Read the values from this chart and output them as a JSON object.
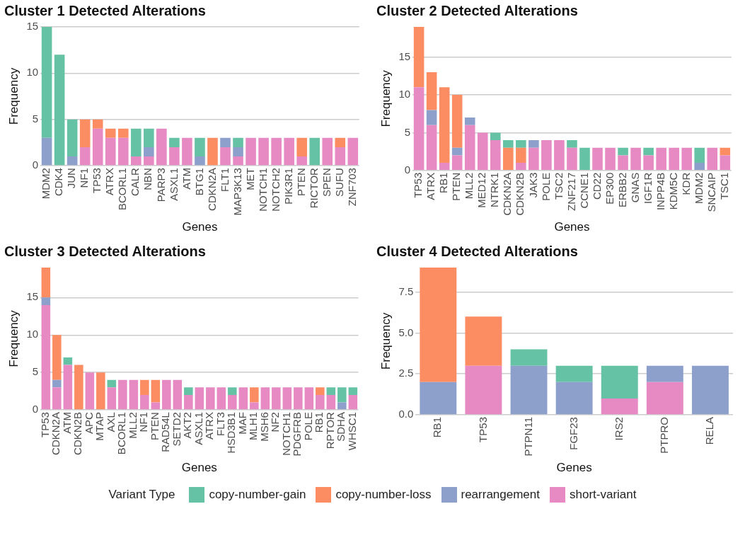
{
  "chart_data": [
    {
      "type": "bar",
      "title": "Cluster 1 Detected Alterations",
      "xlabel": "Genes",
      "ylabel": "Frequency",
      "stacked": true,
      "grid": "y",
      "legend": "bottom",
      "legend_title": "Variant Type",
      "categories": [
        "MDM2",
        "CDK4",
        "JUN",
        "NF1",
        "TP53",
        "ATRX",
        "BCORL1",
        "CALR",
        "NBN",
        "PARP3",
        "ASXL1",
        "ATM",
        "BTG1",
        "CDKN2A",
        "FLT1",
        "MAP3K13",
        "MET",
        "NOTCH1",
        "NOTCH2",
        "PIK3R1",
        "PTEN",
        "RICTOR",
        "SPEN",
        "SUFU",
        "ZNF703"
      ],
      "ylim": [
        0,
        15
      ],
      "yticks": [
        0,
        5,
        10,
        15
      ],
      "series": [
        {
          "name": "short-variant",
          "color": "#e78ac3",
          "values": [
            0,
            0,
            0,
            2,
            4,
            3,
            3,
            1,
            1,
            4,
            2,
            3,
            0,
            0,
            2,
            1,
            3,
            3,
            3,
            3,
            1,
            0,
            3,
            2,
            3
          ]
        },
        {
          "name": "rearrangement",
          "color": "#8da0cb",
          "values": [
            3,
            0,
            1,
            0,
            0,
            0,
            0,
            0,
            1,
            0,
            0,
            0,
            1,
            0,
            1,
            1,
            0,
            0,
            0,
            0,
            0,
            0,
            0,
            0,
            0
          ]
        },
        {
          "name": "copy-number-loss",
          "color": "#fc8d62",
          "values": [
            0,
            0,
            0,
            3,
            1,
            1,
            1,
            0,
            0,
            0,
            0,
            0,
            0,
            3,
            0,
            0,
            0,
            0,
            0,
            0,
            2,
            0,
            0,
            1,
            0
          ]
        },
        {
          "name": "copy-number-gain",
          "color": "#66c2a5",
          "values": [
            12,
            12,
            4,
            0,
            0,
            0,
            0,
            3,
            2,
            0,
            1,
            0,
            2,
            0,
            0,
            1,
            0,
            0,
            0,
            0,
            0,
            3,
            0,
            0,
            0
          ]
        }
      ]
    },
    {
      "type": "bar",
      "title": "Cluster 2 Detected Alterations",
      "xlabel": "Genes",
      "ylabel": "Frequency",
      "stacked": true,
      "grid": "y",
      "categories": [
        "TP53",
        "ATRX",
        "RB1",
        "PTEN",
        "MLL2",
        "MED12",
        "NTRK1",
        "CDKN2A",
        "CDKN2B",
        "JAK3",
        "POLE",
        "TSC2",
        "ZNF217",
        "CCNE1",
        "CD22",
        "EP300",
        "ERBB2",
        "GNAS",
        "IGF1R",
        "INPP4B",
        "KDM5C",
        "KDR",
        "MDM2",
        "SNCAIP",
        "TSC1"
      ],
      "ylim": [
        0,
        19
      ],
      "yticks": [
        0,
        5,
        10,
        15
      ],
      "series": [
        {
          "name": "short-variant",
          "color": "#e78ac3",
          "values": [
            11,
            6,
            1,
            2,
            6,
            5,
            4,
            0,
            1,
            3,
            4,
            4,
            3,
            0,
            3,
            3,
            2,
            3,
            2,
            3,
            3,
            3,
            0,
            3,
            2
          ]
        },
        {
          "name": "rearrangement",
          "color": "#8da0cb",
          "values": [
            0,
            2,
            0,
            1,
            1,
            0,
            0,
            0,
            0,
            1,
            0,
            0,
            0,
            0,
            0,
            0,
            0,
            0,
            0,
            0,
            0,
            0,
            1,
            0,
            0
          ]
        },
        {
          "name": "copy-number-loss",
          "color": "#fc8d62",
          "values": [
            8,
            5,
            10,
            7,
            0,
            0,
            0,
            3,
            2,
            0,
            0,
            0,
            0,
            0,
            0,
            0,
            0,
            0,
            0,
            0,
            0,
            0,
            0,
            0,
            1
          ]
        },
        {
          "name": "copy-number-gain",
          "color": "#66c2a5",
          "values": [
            0,
            0,
            0,
            0,
            0,
            0,
            1,
            1,
            1,
            0,
            0,
            0,
            1,
            3,
            0,
            0,
            1,
            0,
            1,
            0,
            0,
            0,
            2,
            0,
            0
          ]
        }
      ]
    },
    {
      "type": "bar",
      "title": "Cluster 3 Detected Alterations",
      "xlabel": "Genes",
      "ylabel": "Frequency",
      "stacked": true,
      "grid": "y",
      "categories": [
        "TP53",
        "CDKN2A",
        "ATM",
        "CDKN2B",
        "APC",
        "MTAP",
        "AXL",
        "BCORL1",
        "MLL2",
        "NF1",
        "PTEN",
        "RAD54L",
        "SETD2",
        "AKT2",
        "ASXL1",
        "ATRX",
        "FLT3",
        "HSD3B1",
        "MAF",
        "MLH1",
        "MSH6",
        "NF2",
        "NOTCH1",
        "PDGFRB",
        "POLE",
        "RB1",
        "RPTOR",
        "SDHA",
        "WHSC1"
      ],
      "ylim": [
        0,
        19
      ],
      "yticks": [
        0,
        5,
        10,
        15
      ],
      "series": [
        {
          "name": "short-variant",
          "color": "#e78ac3",
          "values": [
            14,
            3,
            6,
            0,
            5,
            0,
            3,
            4,
            4,
            2,
            1,
            4,
            4,
            2,
            3,
            3,
            3,
            2,
            3,
            1,
            3,
            3,
            3,
            3,
            3,
            2,
            2,
            0,
            2
          ]
        },
        {
          "name": "rearrangement",
          "color": "#8da0cb",
          "values": [
            1,
            1,
            0,
            0,
            0,
            0,
            0,
            0,
            0,
            0,
            0,
            0,
            0,
            0,
            0,
            0,
            0,
            0,
            0,
            0,
            0,
            0,
            0,
            0,
            0,
            0,
            0,
            1,
            0
          ]
        },
        {
          "name": "copy-number-loss",
          "color": "#fc8d62",
          "values": [
            4,
            6,
            0,
            6,
            0,
            5,
            0,
            0,
            0,
            2,
            3,
            0,
            0,
            0,
            0,
            0,
            0,
            0,
            0,
            2,
            0,
            0,
            0,
            0,
            0,
            1,
            0,
            0,
            0
          ]
        },
        {
          "name": "copy-number-gain",
          "color": "#66c2a5",
          "values": [
            0,
            0,
            1,
            0,
            0,
            0,
            1,
            0,
            0,
            0,
            0,
            0,
            0,
            1,
            0,
            0,
            0,
            1,
            0,
            0,
            0,
            0,
            0,
            0,
            0,
            0,
            1,
            2,
            1
          ]
        }
      ]
    },
    {
      "type": "bar",
      "title": "Cluster 4 Detected Alterations",
      "xlabel": "Genes",
      "ylabel": "Frequency",
      "stacked": true,
      "grid": "y",
      "categories": [
        "RB1",
        "TP53",
        "PTPN11",
        "FGF23",
        "IRS2",
        "PTPRO",
        "RELA"
      ],
      "ylim": [
        0,
        9
      ],
      "yticks": [
        {
          "value": 0,
          "label": "0.0"
        },
        2.5,
        {
          "value": 5,
          "label": "5.0"
        },
        7.5
      ],
      "series": [
        {
          "name": "short-variant",
          "color": "#e78ac3",
          "values": [
            0,
            3,
            0,
            0,
            1,
            2,
            0
          ]
        },
        {
          "name": "rearrangement",
          "color": "#8da0cb",
          "values": [
            2,
            0,
            3,
            2,
            0,
            1,
            3
          ]
        },
        {
          "name": "copy-number-loss",
          "color": "#fc8d62",
          "values": [
            7,
            3,
            0,
            0,
            0,
            0,
            0
          ]
        },
        {
          "name": "copy-number-gain",
          "color": "#66c2a5",
          "values": [
            0,
            0,
            1,
            1,
            2,
            0,
            0
          ]
        }
      ]
    }
  ]
}
